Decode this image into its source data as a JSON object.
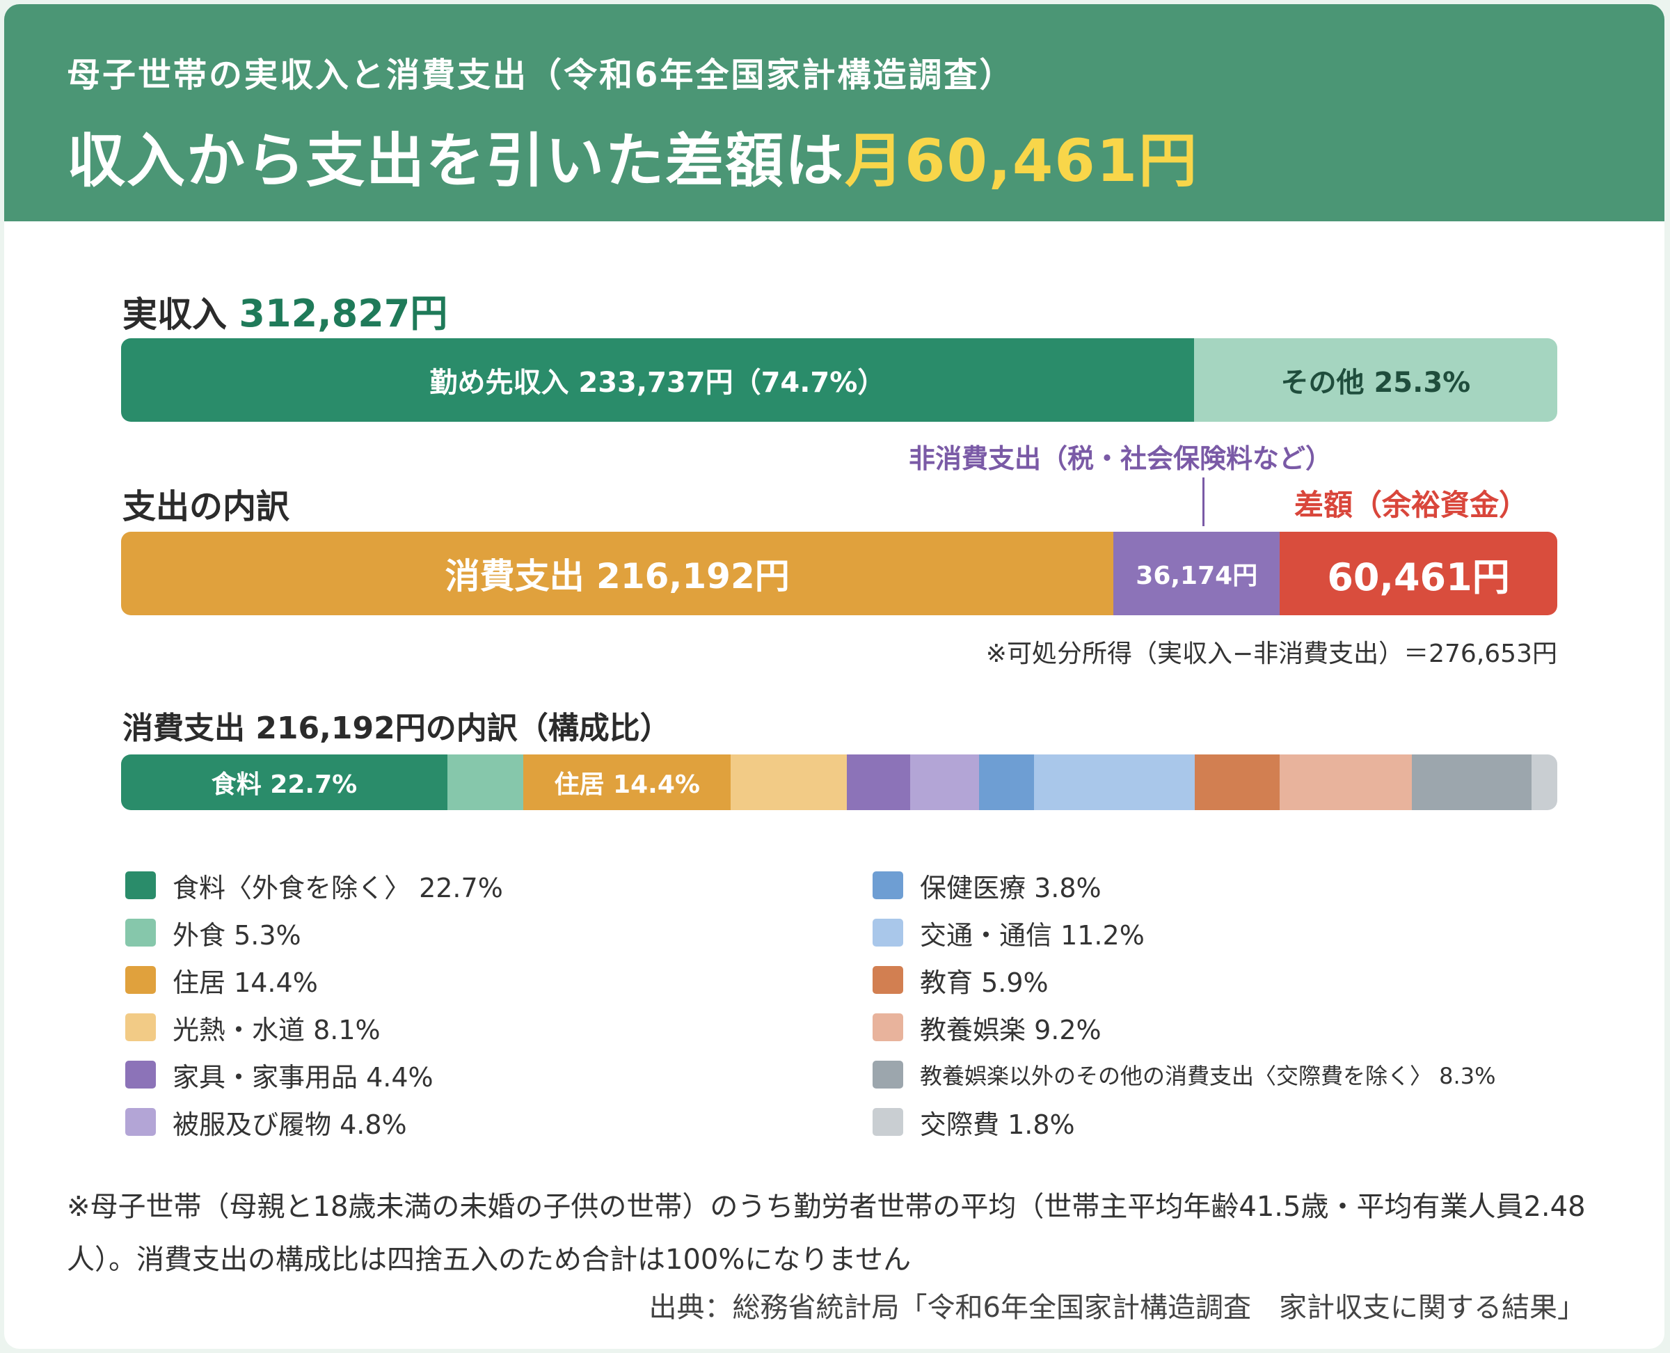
{
  "header": {
    "subtitle": "母子世帯の実収入と消費支出（令和6年全国家計構造調査）",
    "title_prefix": "収入から支出を引いた差額は",
    "title_highlight": "月60,461円"
  },
  "colors": {
    "header_bg": "#4b9675",
    "highlight": "#f8d64a",
    "income_main": "#2a8c6a",
    "income_other": "#a5d5c0",
    "consumption": "#e0a13d",
    "non_consumption": "#8c73b8",
    "surplus": "#d94d3d"
  },
  "income": {
    "label": "実収入",
    "total": "312,827円"
  },
  "expense": {
    "label": "支出の内訳",
    "non_consumption_label": "非消費支出（税・社会保険料など）",
    "surplus_label": "差額（余裕資金）",
    "disposable_note": "※可処分所得（実収入−非消費支出）＝276,653円"
  },
  "composition": {
    "title": "消費支出 216,192円の内訳（構成比）"
  },
  "chart_data": [
    {
      "type": "bar",
      "title": "実収入 312,827円",
      "orientation": "horizontal-stacked",
      "total": 312827,
      "segments": [
        {
          "name": "勤め先収入",
          "value": 233737,
          "percent": 74.7,
          "label": "勤め先収入 233,737円（74.7%）",
          "color": "#2a8c6a",
          "text_color": "#ffffff"
        },
        {
          "name": "その他",
          "percent": 25.3,
          "label": "その他 25.3%",
          "color": "#a5d5c0",
          "text_color": "#1f4d3c"
        }
      ]
    },
    {
      "type": "bar",
      "title": "支出の内訳",
      "orientation": "horizontal-stacked",
      "total": 312827,
      "segments": [
        {
          "name": "消費支出",
          "value": 216192,
          "label": "消費支出 216,192円",
          "color": "#e0a13d",
          "text_color": "#ffffff",
          "font": 50
        },
        {
          "name": "非消費支出",
          "value": 36174,
          "label": "36,174円",
          "color": "#8c73b8",
          "text_color": "#ffffff",
          "font": 36
        },
        {
          "name": "差額",
          "value": 60461,
          "label": "60,461円",
          "color": "#d94d3d",
          "text_color": "#ffffff",
          "font": 54
        }
      ]
    },
    {
      "type": "bar",
      "title": "消費支出 216,192円の内訳（構成比）",
      "orientation": "horizontal-stacked",
      "segments": [
        {
          "name": "食料〈外食を除く〉",
          "percent": 22.7,
          "bar_label": "食料 22.7%",
          "legend_label": "食料〈外食を除く〉 22.7%",
          "color": "#2a8c6a"
        },
        {
          "name": "外食",
          "percent": 5.3,
          "bar_label": "",
          "legend_label": "外食 5.3%",
          "color": "#86c7ab"
        },
        {
          "name": "住居",
          "percent": 14.4,
          "bar_label": "住居 14.4%",
          "legend_label": "住居 14.4%",
          "color": "#e0a13d"
        },
        {
          "name": "光熱・水道",
          "percent": 8.1,
          "bar_label": "",
          "legend_label": "光熱・水道 8.1%",
          "color": "#f2cb86"
        },
        {
          "name": "家具・家事用品",
          "percent": 4.4,
          "bar_label": "",
          "legend_label": "家具・家事用品 4.4%",
          "color": "#8c73b8"
        },
        {
          "name": "被服及び履物",
          "percent": 4.8,
          "bar_label": "",
          "legend_label": "被服及び履物 4.8%",
          "color": "#b3a5d6"
        },
        {
          "name": "保健医療",
          "percent": 3.8,
          "bar_label": "",
          "legend_label": "保健医療 3.8%",
          "color": "#6e9ed3"
        },
        {
          "name": "交通・通信",
          "percent": 11.2,
          "bar_label": "",
          "legend_label": "交通・通信 11.2%",
          "color": "#a9c7ea"
        },
        {
          "name": "教育",
          "percent": 5.9,
          "bar_label": "",
          "legend_label": "教育 5.9%",
          "color": "#d27f51"
        },
        {
          "name": "教養娯楽",
          "percent": 9.2,
          "bar_label": "",
          "legend_label": "教養娯楽 9.2%",
          "color": "#e8b39c"
        },
        {
          "name": "教養娯楽以外のその他の消費支出〈交際費を除く〉",
          "percent": 8.3,
          "bar_label": "",
          "legend_label": "教養娯楽以外のその他の消費支出〈交際費を除く〉 8.3%",
          "color": "#9ca6ad"
        },
        {
          "name": "交際費",
          "percent": 1.8,
          "bar_label": "",
          "legend_label": "交際費 1.8%",
          "color": "#c9ced2"
        }
      ]
    }
  ],
  "footnote": "※母子世帯（母親と18歳未満の未婚の子供の世帯）のうち勤労者世帯の平均（世帯主平均年齢41.5歳・平均有業人員2.48人）。消費支出の構成比は四捨五入のため合計は100%になりません",
  "source": "出典：総務省統計局「令和6年全国家計構造調査　家計収支に関する結果」"
}
